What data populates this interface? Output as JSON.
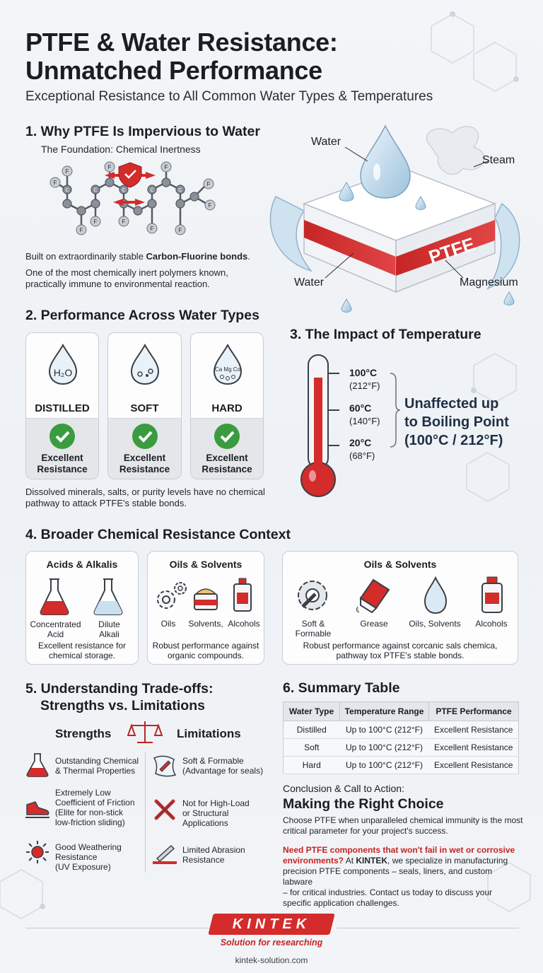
{
  "header": {
    "title_line1": "PTFE & Water Resistance:",
    "title_line2": "Unmatched Performance",
    "subtitle": "Exceptional Resistance to All Common Water Types & Temperatures"
  },
  "section1": {
    "heading": "1. Why PTFE Is Impervious to Water",
    "subheading": "The Foundation: Chemical Inertness",
    "molecule_atom_label": "F",
    "molecule_carbon_label": "C",
    "text_pre": "Built on extraordinarily stable ",
    "text_bold": "Carbon-Fluorine bonds",
    "text_post": ".",
    "text2_line1": "One of the most chemically inert polymers known,",
    "text2_line2": "practically immune to environmental reaction."
  },
  "hero": {
    "block_label": "PTFE",
    "label_water_top": "Water",
    "label_steam": "Steam",
    "label_water_bottom": "Water",
    "label_magnesium": "Magnesium"
  },
  "section2": {
    "heading": "2. Performance Across Water Types",
    "cards": [
      {
        "name": "DISTILLED",
        "icon_text": "H₂O",
        "result_line1": "Excellent",
        "result_line2": "Resistance"
      },
      {
        "name": "SOFT",
        "icon_text": "",
        "result_line1": "Excellent",
        "result_line2": "Resistance"
      },
      {
        "name": "HARD",
        "icon_text": "Ca Mg Co",
        "result_line1": "Excellent",
        "result_line2": "Resistance"
      }
    ],
    "note_line1": "Dissolved minerals, salts, or purity levels have no chemical",
    "note_line2": "pathway to attack PTFE's stable bonds."
  },
  "section3": {
    "heading": "3. The Impact of Temperature",
    "ticks": [
      {
        "c": "100°C",
        "f": "(212°F)"
      },
      {
        "c": "60°C",
        "f": "(140°F)"
      },
      {
        "c": "20°C",
        "f": "(68°F)"
      }
    ],
    "callout_line1": "Unaffected up",
    "callout_line2": "to Boiling Point",
    "callout_line3": "(100°C / 212°F)"
  },
  "section4": {
    "heading": "4. Broader Chemical Resistance Context",
    "card1": {
      "title": "Acids & Alkalis",
      "items": [
        {
          "l1": "Concentrated",
          "l2": "Acid"
        },
        {
          "l1": "Dilute",
          "l2": "Alkali"
        }
      ],
      "desc_line1": "Excellent resistance for",
      "desc_line2": "chemical storage."
    },
    "card2": {
      "title": "Oils & Solvents",
      "items": [
        "Oils",
        "Solvents,",
        "Alcohols"
      ],
      "desc_line1": "Robust performance against",
      "desc_line2": "organic compounds."
    },
    "card3": {
      "title": "Oils & Solvents",
      "items": [
        {
          "l1": "Soft &",
          "l2": "Formable"
        },
        {
          "l1": "Grease",
          "l2": ""
        },
        {
          "l1": "Oils, Solvents",
          "l2": ""
        },
        {
          "l1": "Alcohols",
          "l2": ""
        }
      ],
      "desc_line1": "Robust performance against corcanic sals chemica,",
      "desc_line2": "pathway tox PTFE's stable bonds."
    }
  },
  "section5": {
    "heading_line1": "5. Understanding Trade-offs:",
    "heading_line2": "Strengths vs. Limitations",
    "strengths_label": "Strengths",
    "limitations_label": "Limitations",
    "strengths": [
      {
        "l1": "Outstanding Chemical",
        "l2": "& Thermal Properties",
        "l3": "",
        "l4": ""
      },
      {
        "l1": "Extremely Low",
        "l2": "Coefficient of Friction",
        "l3": "(Elite for non-stick",
        "l4": "low-friction sliding)"
      },
      {
        "l1": "Good Weathering",
        "l2": "Resistance",
        "l3": "(UV Exposure)",
        "l4": ""
      }
    ],
    "limitations": [
      {
        "l1": "Soft & Formable",
        "l2": "(Advantage for seals)",
        "l3": ""
      },
      {
        "l1": "Not for High-Load",
        "l2": "or Structural",
        "l3": "Applications"
      },
      {
        "l1": "Limited Abrasion",
        "l2": "Resistance",
        "l3": ""
      }
    ]
  },
  "section6": {
    "heading": "6. Summary Table",
    "columns": [
      "Water Type",
      "Temperature Range",
      "PTFE Performance"
    ],
    "rows": [
      [
        "Distilled",
        "Up to 100°C (212°F)",
        "Excellent Resistance"
      ],
      [
        "Soft",
        "Up to 100°C (212°F)",
        "Excellent Resistance"
      ],
      [
        "Hard",
        "Up to 100°C (212°F)",
        "Excellent Resistance"
      ]
    ]
  },
  "conclusion": {
    "kicker": "Conclusion & Call to Action:",
    "heading": "Making the Right Choice",
    "body_line1": "Choose PTFE when unparalleled chemical immunity is the most",
    "body_line2": "critical parameter for your project's success.",
    "cta_red_line1": "Need PTFE components that won't fail in wet or corrosive",
    "cta_red_line2": "environments?",
    "cta_mid": " At ",
    "cta_brand": "KINTEK",
    "cta_rest_line2": ", we specialize in manufacturing",
    "cta_line3": "precision PTFE components – seals, liners, and custom labware",
    "cta_line4": "– for critical industries. Contact us today to discuss your",
    "cta_line5": "specific application challenges."
  },
  "footer": {
    "brand": "KINTEK",
    "tagline": "Solution for researching",
    "url": "kintek-solution.com"
  },
  "colors": {
    "accent_red": "#d42b2b",
    "check_green": "#3a9c3e",
    "text_dark": "#1a1d22"
  }
}
